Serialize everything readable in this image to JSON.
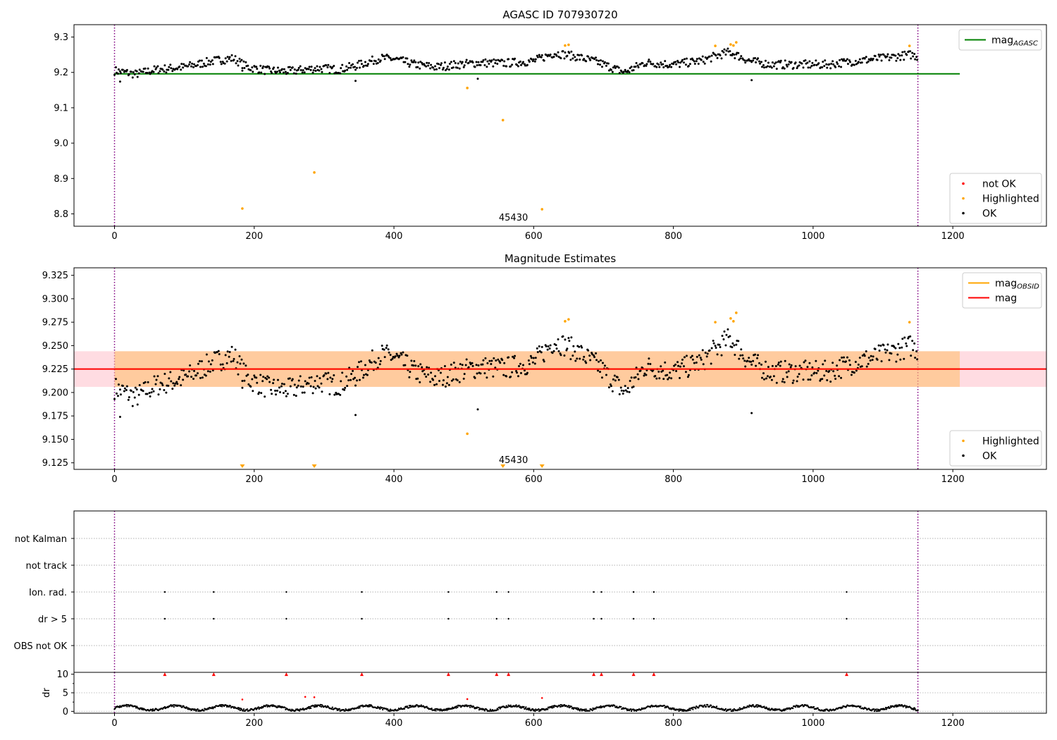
{
  "figure": {
    "obsid_label": "45430"
  },
  "chart_data": [
    {
      "type": "scatter",
      "title": "AGASC ID 707930720",
      "xlim": [
        -58,
        1334
      ],
      "ylim": [
        8.765,
        9.335
      ],
      "xticks": [
        0,
        200,
        400,
        600,
        800,
        1000,
        1200
      ],
      "yticks": [
        8.8,
        8.9,
        9.0,
        9.1,
        9.2,
        9.3
      ],
      "vlines": [
        0,
        1150
      ],
      "mag_agasc": 9.196,
      "mag_agasc_range": [
        0,
        1210
      ],
      "obsid_annotation": {
        "x": 571,
        "text": "45430"
      },
      "series": [
        {
          "name": "not OK",
          "color": "#ff0000",
          "points": []
        },
        {
          "name": "Highlighted",
          "color": "#ffa500",
          "points": [
            [
              183,
              8.815
            ],
            [
              286,
              8.917
            ],
            [
              505,
              9.156
            ],
            [
              556,
              9.065
            ],
            [
              612,
              8.813
            ],
            [
              645,
              9.276
            ],
            [
              650,
              9.278
            ],
            [
              860,
              9.275
            ],
            [
              882,
              9.279
            ],
            [
              886,
              9.276
            ],
            [
              890,
              9.285
            ],
            [
              1138,
              9.275
            ]
          ]
        },
        {
          "name": "OK",
          "color": "#000000",
          "points": []
        }
      ],
      "legends": [
        {
          "position": "upper right",
          "entries": [
            {
              "label": "mag",
              "sub": "AGASC",
              "kind": "line",
              "color": "#008000"
            }
          ]
        },
        {
          "position": "lower right",
          "entries": [
            {
              "label": "not OK",
              "kind": "dot",
              "color": "#ff0000"
            },
            {
              "label": "Highlighted",
              "kind": "dot",
              "color": "#ffa500"
            },
            {
              "label": "OK",
              "kind": "dot",
              "color": "#000000"
            }
          ]
        }
      ]
    },
    {
      "type": "scatter",
      "title": "Magnitude Estimates",
      "xlim": [
        -58,
        1334
      ],
      "ylim": [
        9.118,
        9.333
      ],
      "xticks": [
        0,
        200,
        400,
        600,
        800,
        1000,
        1200
      ],
      "yticks": [
        9.125,
        9.15,
        9.175,
        9.2,
        9.225,
        9.25,
        9.275,
        9.3,
        9.325
      ],
      "vlines": [
        0,
        1150
      ],
      "mag": 9.225,
      "mag_band": [
        9.206,
        9.244
      ],
      "mag_range": [
        -58,
        1334
      ],
      "mag_obsid": 9.225,
      "mag_obsid_band": [
        9.206,
        9.244
      ],
      "mag_obsid_range": [
        0,
        1210
      ],
      "obsid_annotation": {
        "x": 571,
        "text": "45430"
      },
      "clipped_highlighted_x": [
        183,
        286,
        556,
        612
      ],
      "series": [
        {
          "name": "Highlighted",
          "color": "#ffa500",
          "points": [
            [
              505,
              9.156
            ],
            [
              645,
              9.276
            ],
            [
              650,
              9.278
            ],
            [
              860,
              9.275
            ],
            [
              882,
              9.279
            ],
            [
              886,
              9.276
            ],
            [
              890,
              9.285
            ],
            [
              1138,
              9.275
            ]
          ]
        },
        {
          "name": "OK",
          "color": "#000000",
          "points": []
        }
      ],
      "legends": [
        {
          "position": "upper right",
          "entries": [
            {
              "label": "mag",
              "sub": "OBSID",
              "kind": "line",
              "color": "#ffa500"
            },
            {
              "label": "mag",
              "sub": "",
              "kind": "line",
              "color": "#ff0000"
            }
          ]
        },
        {
          "position": "lower right",
          "entries": [
            {
              "label": "Highlighted",
              "kind": "dot",
              "color": "#ffa500"
            },
            {
              "label": "OK",
              "kind": "dot",
              "color": "#000000"
            }
          ]
        }
      ]
    },
    {
      "type": "scatter",
      "title": "",
      "xlim": [
        -58,
        1334
      ],
      "categories": [
        "OBS not OK",
        "dr > 5",
        "Ion. rad.",
        "not track",
        "not Kalman"
      ],
      "vlines": [
        0,
        1150
      ],
      "flag_x": [
        72,
        142,
        246,
        354,
        478,
        547,
        564,
        686,
        697,
        743,
        772,
        1048
      ],
      "flag_rows": [
        "dr > 5",
        "Ion. rad."
      ]
    },
    {
      "type": "scatter",
      "title": "",
      "xlim": [
        -58,
        1334
      ],
      "ylim": [
        -0.5,
        10.5
      ],
      "xticks": [
        0,
        200,
        400,
        600,
        800,
        1000,
        1200
      ],
      "yticks": [
        0,
        5,
        10
      ],
      "ylabel": "dr",
      "vlines": [
        0,
        1150
      ],
      "red_triangles_x": [
        72,
        142,
        246,
        354,
        478,
        547,
        564,
        686,
        697,
        743,
        772,
        1048
      ],
      "red_dots": [
        [
          183,
          3.2
        ],
        [
          273,
          3.9
        ],
        [
          286,
          3.8
        ],
        [
          505,
          3.3
        ],
        [
          612,
          3.6
        ]
      ]
    }
  ]
}
